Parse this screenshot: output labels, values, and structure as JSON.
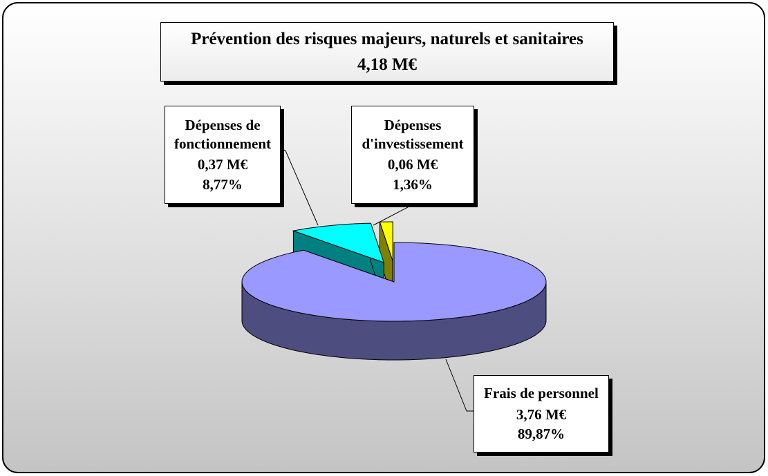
{
  "chart_data": {
    "type": "pie3d",
    "title": "Prévention des risques majeurs, naturels et sanitaires",
    "subtitle": "4,18 M€",
    "categories": [
      "Frais de personnel",
      "Dépenses de fonctionnement",
      "Dépenses d'investissement"
    ],
    "amounts": [
      3.76,
      0.37,
      0.06
    ],
    "amount_labels": [
      "3,76 M€",
      "0,37 M€",
      "0,06 M€"
    ],
    "values": [
      89.87,
      8.77,
      1.36
    ],
    "value_labels": [
      "89,87%",
      "8,77%",
      "1,36%"
    ],
    "colors": [
      "#9999ff",
      "#00ffff",
      "#ffff00"
    ]
  }
}
